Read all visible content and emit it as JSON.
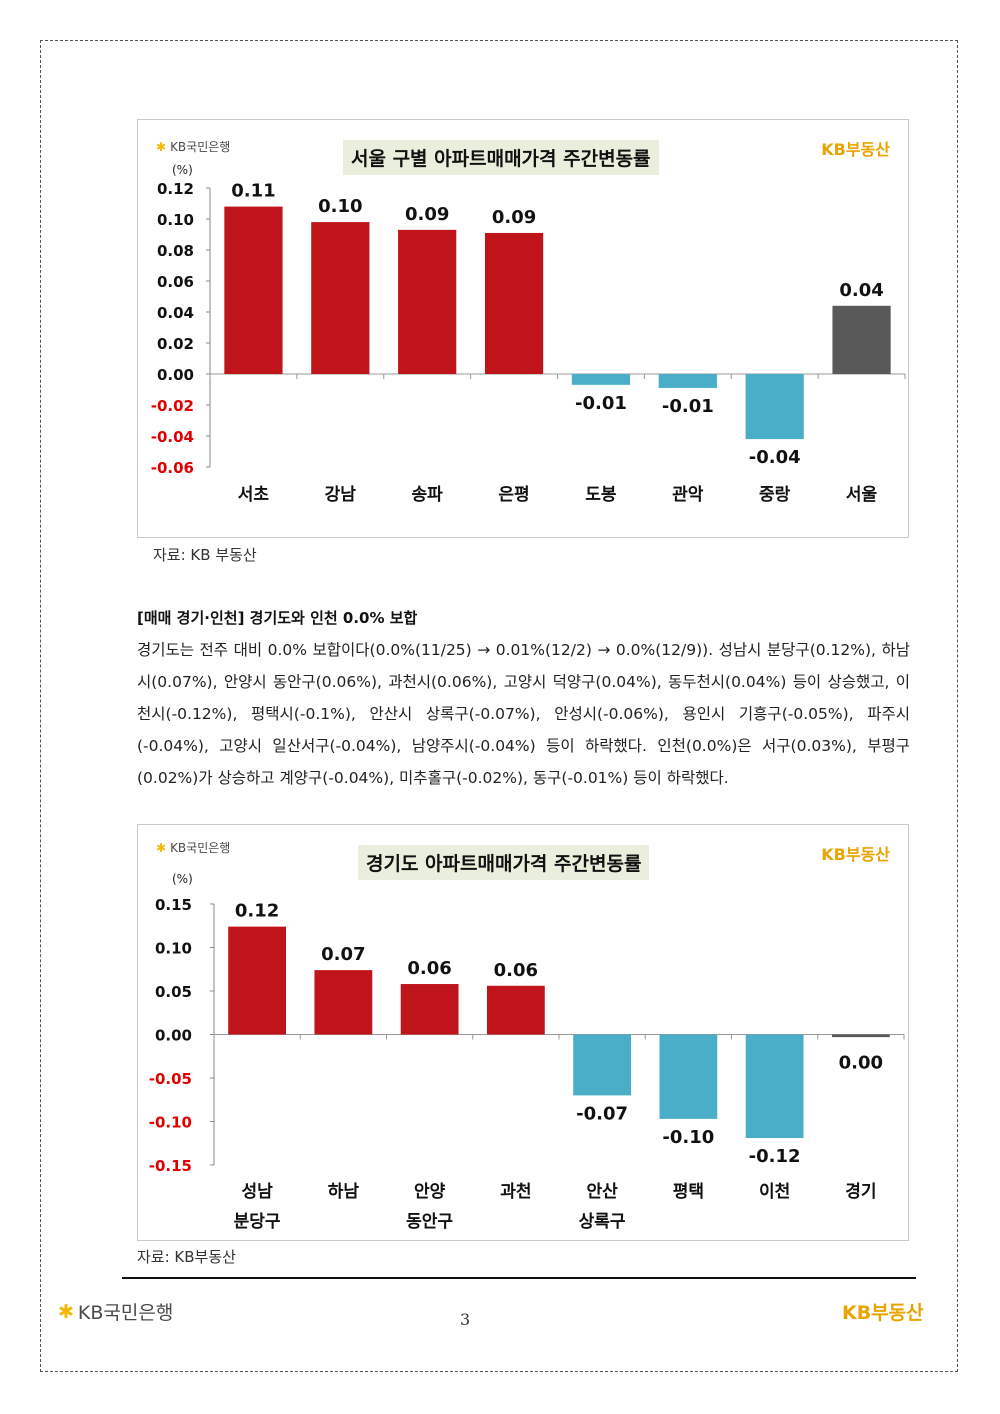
{
  "colors": {
    "positive": "#c0141b",
    "negative": "#4aaec8",
    "total": "#595959",
    "neg_tick": "#e00000",
    "title_bg": "#e9efdc",
    "brand": "#e8a400"
  },
  "logos": {
    "bank_star": "✱",
    "bank_name": "KB국민은행",
    "brand_name": "KB부동산"
  },
  "chart1": {
    "title": "서울 구별 아파트매매가격 주간변동률",
    "source": "자료: KB 부동산"
  },
  "section": {
    "heading": "[매매 경기·인천] 경기도와 인천 0.0% 보합",
    "body": "경기도는 전주 대비 0.0% 보합이다(0.0%(11/25) → 0.01%(12/2) → 0.0%(12/9)). 성남시 분당구(0.12%), 하남시(0.07%), 안양시 동안구(0.06%), 과천시(0.06%), 고양시 덕양구(0.04%), 동두천시(0.04%) 등이 상승했고, 이천시(-0.12%), 평택시(-0.1%), 안산시 상록구(-0.07%), 안성시(-0.06%), 용인시 기흥구(-0.05%), 파주시(-0.04%), 고양시 일산서구(-0.04%), 남양주시(-0.04%) 등이 하락했다. 인천(0.0%)은 서구(0.03%), 부평구(0.02%)가 상승하고 계양구(-0.04%), 미추홀구(-0.02%), 동구(-0.01%) 등이 하락했다."
  },
  "chart2": {
    "title": "경기도 아파트매매가격 주간변동률",
    "source": "자료: KB부동산"
  },
  "footer": {
    "page_number": "3"
  },
  "chart_data": [
    {
      "type": "bar",
      "title": "서울 구별 아파트매매가격 주간변동률",
      "ylabel": "(%)",
      "ylim": [
        -0.06,
        0.12
      ],
      "yticks": [
        "0.12",
        "0.10",
        "0.08",
        "0.06",
        "0.04",
        "0.02",
        "0.00",
        "-0.02",
        "-0.04",
        "-0.06"
      ],
      "ytick_values": [
        0.12,
        0.1,
        0.08,
        0.06,
        0.04,
        0.02,
        0.0,
        -0.02,
        -0.04,
        -0.06
      ],
      "categories": [
        [
          "서초"
        ],
        [
          "강남"
        ],
        [
          "송파"
        ],
        [
          "은평"
        ],
        [
          "도봉"
        ],
        [
          "관악"
        ],
        [
          "중랑"
        ],
        [
          "서울"
        ]
      ],
      "values": [
        0.108,
        0.098,
        0.093,
        0.091,
        -0.007,
        -0.009,
        -0.042,
        0.044
      ],
      "labels": [
        "0.11",
        "0.10",
        "0.09",
        "0.09",
        "-0.01",
        "-0.01",
        "-0.04",
        "0.04"
      ],
      "highlight_last": true,
      "grid": false
    },
    {
      "type": "bar",
      "title": "경기도 아파트매매가격 주간변동률",
      "ylabel": "(%)",
      "ylim": [
        -0.15,
        0.15
      ],
      "yticks": [
        "0.15",
        "0.10",
        "0.05",
        "0.00",
        "-0.05",
        "-0.10",
        "-0.15"
      ],
      "ytick_values": [
        0.15,
        0.1,
        0.05,
        0.0,
        -0.05,
        -0.1,
        -0.15
      ],
      "categories": [
        [
          "성남",
          "분당구"
        ],
        [
          "하남"
        ],
        [
          "안양",
          "동안구"
        ],
        [
          "과천"
        ],
        [
          "안산",
          "상록구"
        ],
        [
          "평택"
        ],
        [
          "이천"
        ],
        [
          "경기"
        ]
      ],
      "values": [
        0.124,
        0.074,
        0.058,
        0.056,
        -0.07,
        -0.097,
        -0.119,
        -0.003
      ],
      "labels": [
        "0.12",
        "0.07",
        "0.06",
        "0.06",
        "-0.07",
        "-0.10",
        "-0.12",
        "0.00"
      ],
      "highlight_last": true,
      "grid": false
    }
  ]
}
